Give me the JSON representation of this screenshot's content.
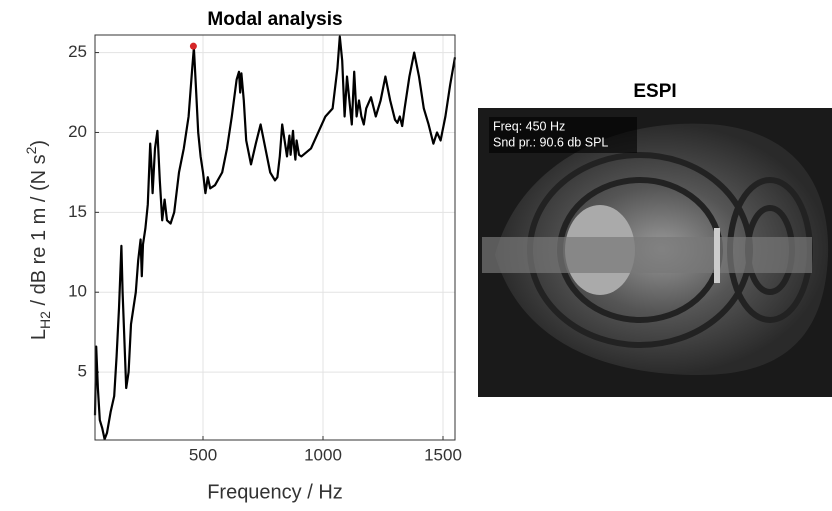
{
  "chart_data": {
    "type": "line",
    "title": "Modal analysis",
    "xlabel": "Frequency / Hz",
    "ylabel": {
      "main": "L",
      "sub": "H2",
      "middle": " / dB re 1 m / (N s",
      "sup": "2",
      "end": ")"
    },
    "x": [
      50,
      55,
      62,
      70,
      80,
      90,
      100,
      115,
      130,
      140,
      150,
      160,
      165,
      175,
      180,
      190,
      200,
      210,
      220,
      230,
      240,
      245,
      250,
      260,
      270,
      280,
      285,
      290,
      300,
      310,
      320,
      330,
      340,
      350,
      365,
      380,
      400,
      420,
      440,
      455,
      462,
      470,
      480,
      490,
      500,
      510,
      520,
      530,
      550,
      580,
      600,
      620,
      640,
      650,
      655,
      660,
      670,
      680,
      700,
      720,
      740,
      760,
      780,
      800,
      810,
      820,
      830,
      840,
      850,
      860,
      865,
      875,
      880,
      885,
      890,
      900,
      910,
      950,
      980,
      1010,
      1040,
      1060,
      1070,
      1080,
      1090,
      1100,
      1110,
      1120,
      1130,
      1140,
      1150,
      1160,
      1170,
      1180,
      1200,
      1220,
      1240,
      1260,
      1280,
      1300,
      1310,
      1320,
      1330,
      1340,
      1360,
      1380,
      1400,
      1420,
      1440,
      1460,
      1475,
      1490,
      1510,
      1530,
      1550
    ],
    "series": [
      {
        "color": "#000000",
        "values": [
          2.3,
          6.6,
          4,
          2,
          1.5,
          0.8,
          1.2,
          2.5,
          3.5,
          6,
          9,
          12.9,
          10,
          6,
          4,
          5,
          8,
          9,
          10,
          12,
          13.3,
          11,
          13,
          14,
          15.5,
          19.3,
          18,
          16.2,
          19,
          20.1,
          17,
          14.5,
          15.8,
          14.5,
          14.3,
          15,
          17.5,
          19,
          21,
          24,
          25.3,
          23,
          20,
          18.5,
          17.5,
          16.2,
          17.2,
          16.5,
          16.7,
          17.5,
          19,
          21,
          23.3,
          23.8,
          22.5,
          23.7,
          22,
          19.5,
          18,
          19.3,
          20.5,
          19,
          17.5,
          17,
          17.2,
          18.5,
          20.5,
          19.5,
          18.5,
          19.8,
          18.6,
          20.1,
          19,
          18.3,
          19.5,
          18.6,
          18.5,
          19,
          20,
          21,
          21.5,
          24,
          26,
          24.5,
          21,
          23.5,
          22,
          20.5,
          23.8,
          21,
          22,
          21,
          20.5,
          21.5,
          22.2,
          21,
          22,
          23.5,
          22,
          20.8,
          20.6,
          21,
          20.4,
          21.5,
          23.5,
          25,
          23.5,
          21.5,
          20.5,
          19.3,
          20,
          19.5,
          21,
          23,
          24.7
        ]
      }
    ],
    "highlight": {
      "x": 460,
      "y": 25.4,
      "color": "#d62728"
    },
    "xlim": [
      50,
      1550
    ],
    "ylim": [
      0.75,
      26.1
    ],
    "xticks": [
      500,
      1000,
      1500
    ],
    "yticks": [
      5,
      10,
      15,
      20,
      25
    ],
    "grid": true
  },
  "espi": {
    "title": "ESPI",
    "freq": "Freq: 450 Hz",
    "pressure": "Snd pr.: 90.6 db SPL"
  }
}
